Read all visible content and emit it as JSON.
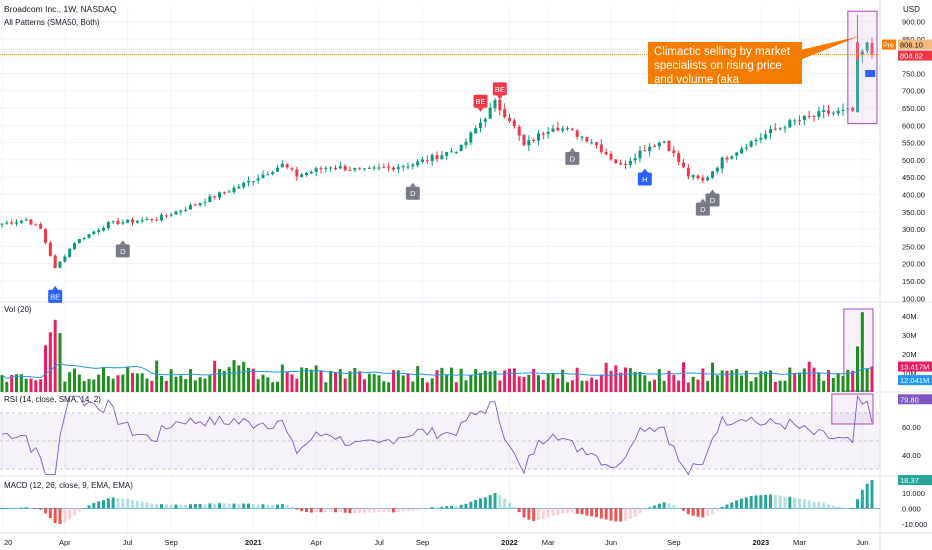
{
  "header": {
    "title": "Broadcom Inc., 1W, NASDAQ",
    "indicator": "All Patterns (SMA50, Both)"
  },
  "price_panel": {
    "currency": "USD",
    "pre_label": "Pre",
    "pre_value": "806.10",
    "last_value": "804.62",
    "annotation": "Climactic selling by market specialists on rising price and volume (aka distribution)",
    "markers": [
      {
        "text": "BE",
        "color": "#2962ff",
        "date": "2020-03-20",
        "dir": "up"
      },
      {
        "text": "D",
        "color": "#787b86",
        "date": "2020-06-26",
        "dir": "up"
      },
      {
        "text": "D",
        "color": "#787b86",
        "date": "2021-08-20",
        "dir": "up"
      },
      {
        "text": "BE",
        "color": "#f23645",
        "date": "2021-11-26",
        "dir": "down"
      },
      {
        "text": "BE",
        "color": "#f23645",
        "date": "2021-12-24",
        "dir": "down"
      },
      {
        "text": "D",
        "color": "#787b86",
        "date": "2022-04-08",
        "dir": "up"
      },
      {
        "text": "H",
        "color": "#2962ff",
        "date": "2022-07-22",
        "dir": "up"
      },
      {
        "text": "D",
        "color": "#787b86",
        "date": "2022-10-14",
        "dir": "up"
      },
      {
        "text": "D",
        "color": "#787b86",
        "date": "2022-10-28",
        "dir": "up"
      }
    ]
  },
  "volume_panel": {
    "label": "Vol (20)",
    "value_red": "13.417M",
    "value_blue": "12.041M"
  },
  "rsi_panel": {
    "label": "RSI (14, close, SMA, 14, 2)",
    "value": "79.80"
  },
  "macd_panel": {
    "label": "MACD (12, 26, close, 9, EMA, EMA)",
    "value": "18.37"
  },
  "colors": {
    "up": "#089981",
    "down": "#f23645",
    "vol_up": "#1e8f1e",
    "vol_down": "#e91e63",
    "accent": "#f57c00",
    "rsi_line": "#7e57c2",
    "ma_line": "#2196f3",
    "hist_up": "#26a69a",
    "hist_down": "#ef5350"
  },
  "chart_data": [
    {
      "type": "candlestick",
      "title": "Broadcom Inc., 1W, NASDAQ",
      "x_axis_labels": [
        "20",
        "Apr",
        "Jul",
        "Sep",
        "2021",
        "Apr",
        "Jul",
        "Sep",
        "2022",
        "Mar",
        "Jun",
        "Sep",
        "2023",
        "Mar",
        "Jun"
      ],
      "y_ticks": [
        "900.00",
        "850.00",
        "800.00",
        "750.00",
        "700.00",
        "650.00",
        "600.00",
        "550.00",
        "500.00",
        "450.00",
        "400.00",
        "350.00",
        "300.00",
        "250.00",
        "200.00",
        "150.00",
        "100.00"
      ],
      "ylim": [
        95,
        945
      ],
      "close_path": [
        [
          "2020-01-03",
          316
        ],
        [
          "2020-02-07",
          327
        ],
        [
          "2020-02-28",
          300
        ],
        [
          "2020-03-20",
          186
        ],
        [
          "2020-04-17",
          262
        ],
        [
          "2020-06-05",
          316
        ],
        [
          "2020-08-14",
          330
        ],
        [
          "2020-09-25",
          360
        ],
        [
          "2020-12-18",
          430
        ],
        [
          "2021-02-12",
          486
        ],
        [
          "2021-03-05",
          455
        ],
        [
          "2021-04-23",
          482
        ],
        [
          "2021-06-11",
          468
        ],
        [
          "2021-08-20",
          488
        ],
        [
          "2021-10-29",
          535
        ],
        [
          "2021-12-17",
          663
        ],
        [
          "2022-01-07",
          620
        ],
        [
          "2022-01-28",
          540
        ],
        [
          "2022-03-11",
          600
        ],
        [
          "2022-04-08",
          580
        ],
        [
          "2022-05-06",
          555
        ],
        [
          "2022-06-17",
          482
        ],
        [
          "2022-07-22",
          535
        ],
        [
          "2022-08-19",
          555
        ],
        [
          "2022-09-23",
          455
        ],
        [
          "2022-10-14",
          438
        ],
        [
          "2022-11-11",
          500
        ],
        [
          "2022-12-16",
          545
        ],
        [
          "2023-02-10",
          602
        ],
        [
          "2023-04-07",
          635
        ],
        [
          "2023-05-19",
          640
        ],
        [
          "2023-05-26",
          790
        ],
        [
          "2023-06-09",
          830
        ],
        [
          "2023-06-16",
          805
        ]
      ],
      "last_price": 804.62
    },
    {
      "type": "bar",
      "title": "Vol (20)",
      "y_ticks": [
        "40M",
        "30M",
        "20M",
        "10M"
      ],
      "ylim": [
        0,
        40
      ],
      "unit": "M",
      "values_approx": "weekly volumes mostly 5–13M, spikes near 38M (Mar 2020), 16M (Dec 2020), 42M (Jun 2023)",
      "ma_value": 12.041,
      "last_value": 13.417
    },
    {
      "type": "line",
      "title": "RSI (14, close, SMA, 14, 2)",
      "y_ticks": [
        "60.00",
        "40.00"
      ],
      "ylim": [
        25,
        85
      ],
      "bands": [
        30,
        70
      ],
      "last_value": 79.8
    },
    {
      "type": "bar",
      "title": "MACD (12, 26, close, 9, EMA, EMA)",
      "y_ticks": [
        "10.000",
        "0.000",
        "-10.000"
      ],
      "ylim": [
        -16,
        21
      ],
      "last_value": 18.37
    }
  ]
}
